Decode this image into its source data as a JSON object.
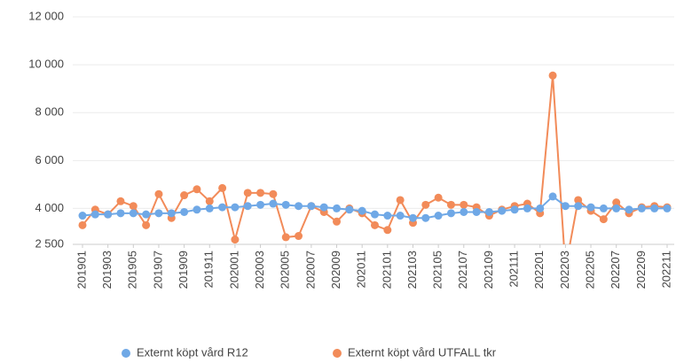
{
  "chart_data": {
    "type": "line",
    "categories": [
      "201901",
      null,
      "201903",
      null,
      "201905",
      null,
      "201907",
      null,
      "201909",
      null,
      "201911",
      null,
      "202001",
      null,
      "202003",
      null,
      "202005",
      null,
      "202007",
      null,
      "202009",
      null,
      "202011",
      null,
      "202101",
      null,
      "202103",
      null,
      "202105",
      null,
      "202107",
      null,
      "202109",
      null,
      "202111",
      null,
      "202201",
      null,
      "202203",
      null,
      "202205",
      null,
      "202207",
      null,
      "202209",
      null,
      "202211"
    ],
    "series": [
      {
        "name": "Externt köpt vård R12",
        "color": "#6fa8e6",
        "values": [
          3700,
          3750,
          3750,
          3800,
          3800,
          3750,
          3800,
          3800,
          3850,
          3950,
          4000,
          4050,
          4050,
          4100,
          4150,
          4200,
          4150,
          4100,
          4100,
          4050,
          4000,
          3950,
          3900,
          3750,
          3700,
          3700,
          3600,
          3600,
          3700,
          3800,
          3850,
          3850,
          3850,
          3900,
          3950,
          4000,
          4000,
          4500,
          4100,
          4100,
          4050,
          4000,
          4000,
          3950,
          4000,
          4000,
          4000
        ]
      },
      {
        "name": "Externt köpt vård UTFALL tkr",
        "color": "#f28b59",
        "values": [
          3300,
          3950,
          3750,
          4300,
          4100,
          3300,
          4600,
          3600,
          4550,
          4800,
          4300,
          4850,
          2700,
          4650,
          4650,
          4600,
          2800,
          2850,
          4100,
          3850,
          3450,
          4000,
          3800,
          3300,
          3100,
          4350,
          3400,
          4150,
          4450,
          4150,
          4150,
          4050,
          3700,
          3950,
          4100,
          4200,
          3800,
          9550,
          1500,
          4350,
          3900,
          3550,
          4250,
          3800,
          4050,
          4100,
          4050
        ]
      }
    ],
    "ylim": [
      2500,
      12000
    ],
    "yticks": [
      {
        "value": 2500,
        "label": "2 500"
      },
      {
        "value": 4000,
        "label": "4 000"
      },
      {
        "value": 6000,
        "label": "6 000"
      },
      {
        "value": 8000,
        "label": "8 000"
      },
      {
        "value": 10000,
        "label": "10 000"
      },
      {
        "value": 12000,
        "label": "12 000"
      }
    ],
    "grid": true,
    "legend": "bottom"
  }
}
